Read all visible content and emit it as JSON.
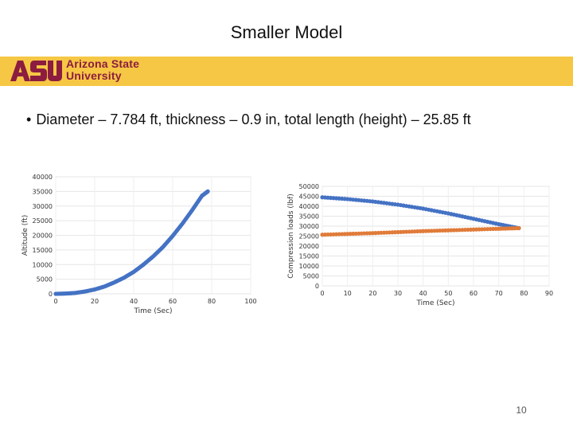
{
  "slide": {
    "title": "Smaller Model",
    "bullet": "Diameter – 7.784 ft, thickness – 0.9 in, total length (height) – 25.85 ft",
    "page_number": "10"
  },
  "banner": {
    "logo_mark": "ASU",
    "logo_line1": "Arizona State",
    "logo_line2": "University",
    "color": "#f6c744",
    "logo_color": "#8c1d40"
  },
  "chart_data": [
    {
      "type": "scatter",
      "xlabel": "Time (Sec)",
      "ylabel": "Altitude (ft)",
      "xlim": [
        0,
        100
      ],
      "ylim": [
        0,
        40000
      ],
      "xticks": [
        0,
        20,
        40,
        60,
        80,
        100
      ],
      "yticks": [
        0,
        5000,
        10000,
        15000,
        20000,
        25000,
        30000,
        35000,
        40000
      ],
      "grid": true,
      "series": [
        {
          "color": "#4472c4",
          "x": [
            0,
            5,
            10,
            15,
            20,
            25,
            30,
            35,
            40,
            45,
            50,
            55,
            60,
            65,
            70,
            75,
            78
          ],
          "y": [
            0,
            100,
            300,
            800,
            1500,
            2500,
            3900,
            5500,
            7500,
            10000,
            12800,
            16000,
            19800,
            24000,
            28600,
            33500,
            35000
          ]
        }
      ]
    },
    {
      "type": "scatter",
      "xlabel": "Time (Sec)",
      "ylabel": "Compression loads (lbf)",
      "xlim": [
        0,
        90
      ],
      "ylim": [
        0,
        50000
      ],
      "xticks": [
        0,
        10,
        20,
        30,
        40,
        50,
        60,
        70,
        80,
        90
      ],
      "yticks": [
        0,
        5000,
        10000,
        15000,
        20000,
        25000,
        30000,
        35000,
        40000,
        45000,
        50000
      ],
      "grid": true,
      "series": [
        {
          "color": "#4472c4",
          "x": [
            0,
            10,
            20,
            30,
            40,
            50,
            60,
            70,
            78
          ],
          "y": [
            44500,
            43600,
            42400,
            40800,
            38800,
            36400,
            33700,
            31000,
            29000
          ]
        },
        {
          "color": "#e07b39",
          "x": [
            0,
            10,
            20,
            30,
            40,
            50,
            60,
            70,
            78
          ],
          "y": [
            25700,
            26100,
            26500,
            27000,
            27500,
            27900,
            28300,
            28700,
            29000
          ]
        }
      ]
    }
  ]
}
